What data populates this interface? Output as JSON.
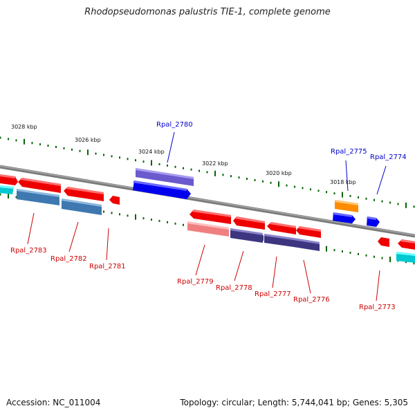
{
  "title": "Rhodopseudomonas palustris TIE-1, complete genome",
  "footer": {
    "accession": "Accession: NC_011004",
    "summary": "Topology: circular; Length: 5,744,041 bp; Genes: 5,305"
  },
  "scale": {
    "unit": "kbp",
    "labels": [
      "3028 kbp",
      "3026 kbp",
      "3024 kbp",
      "3022 kbp",
      "3020 kbp",
      "3018 kbp"
    ]
  },
  "genes": [
    {
      "id": "Rpal_2783",
      "label": "Rpal_2783",
      "strand": "minus",
      "color": "#ff0000"
    },
    {
      "id": "Rpal_2782",
      "label": "Rpal_2782",
      "strand": "minus",
      "color": "#ff0000"
    },
    {
      "id": "Rpal_2781",
      "label": "Rpal_2781",
      "strand": "minus",
      "color": "#ff0000"
    },
    {
      "id": "Rpal_2780",
      "label": "Rpal_2780",
      "strand": "plus",
      "color": "#0000ff"
    },
    {
      "id": "Rpal_2779",
      "label": "Rpal_2779",
      "strand": "minus",
      "color": "#ff0000"
    },
    {
      "id": "Rpal_2778",
      "label": "Rpal_2778",
      "strand": "minus",
      "color": "#ff0000"
    },
    {
      "id": "Rpal_2777",
      "label": "Rpal_2777",
      "strand": "minus",
      "color": "#ff0000"
    },
    {
      "id": "Rpal_2776",
      "label": "Rpal_2776",
      "strand": "minus",
      "color": "#ff0000"
    },
    {
      "id": "Rpal_2775",
      "label": "Rpal_2775",
      "strand": "plus",
      "color": "#0000ff"
    },
    {
      "id": "Rpal_2774",
      "label": "Rpal_2774",
      "strand": "plus",
      "color": "#0000ff"
    },
    {
      "id": "Rpal_2773",
      "label": "Rpal_2773",
      "strand": "minus",
      "color": "#ff0000"
    }
  ],
  "colors": {
    "backbone": "#808080",
    "tick": "#006400",
    "plus_label": "#0000cc",
    "minus_label": "#cc0000"
  }
}
